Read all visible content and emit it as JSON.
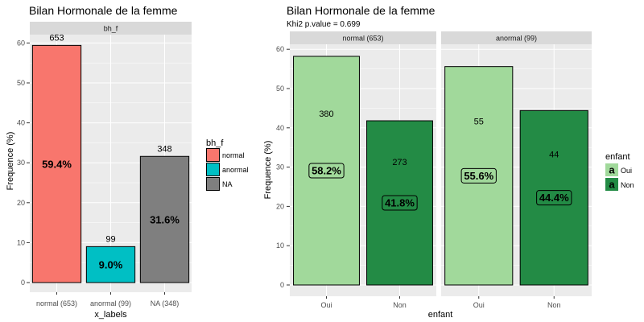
{
  "chart_data": [
    {
      "type": "bar",
      "title": "Bilan Hormonale de la femme",
      "facet_label": "bh_f",
      "xlabel": "x_labels",
      "ylabel": "Frequence (%)",
      "ylim": [
        0,
        62
      ],
      "yticks": [
        0,
        10,
        20,
        30,
        40,
        50,
        60
      ],
      "grid": true,
      "legend_position": "right",
      "legend_title": "bh_f",
      "categories": [
        "normal (653)",
        "anormal (99)",
        "NA (348)"
      ],
      "series": [
        {
          "name": "bh_f",
          "values": [
            59.4,
            9.0,
            31.6
          ],
          "counts": [
            "653",
            "99",
            "348"
          ],
          "pct_labels": [
            "59.4%",
            "9.0%",
            "31.6%"
          ],
          "colors": [
            "#F8766D",
            "#00BFC4",
            "#7F7F7F"
          ],
          "legend": [
            "normal",
            "anormal",
            "NA"
          ]
        }
      ]
    },
    {
      "type": "bar",
      "title": "Bilan Hormonale de la femme",
      "subtitle": "Khi2 p.value = 0.699",
      "xlabel": "enfant",
      "ylabel": "Frequence (%)",
      "ylim": [
        0,
        62
      ],
      "yticks": [
        0,
        10,
        20,
        30,
        40,
        50,
        60
      ],
      "grid": true,
      "legend_position": "right",
      "legend_title": "enfant",
      "legend_key_text": "a",
      "categories": [
        "Oui",
        "Non"
      ],
      "colors": {
        "Oui": "#A1D99B",
        "Non": "#238B45"
      },
      "facets": [
        {
          "label": "normal (653)",
          "values": [
            58.2,
            41.8
          ],
          "counts": [
            "380",
            "273"
          ],
          "pct_labels": [
            "58.2%",
            "41.8%"
          ]
        },
        {
          "label": "anormal (99)",
          "values": [
            55.6,
            44.4
          ],
          "counts": [
            "55",
            "44"
          ],
          "pct_labels": [
            "55.6%",
            "44.4%"
          ]
        }
      ]
    }
  ]
}
